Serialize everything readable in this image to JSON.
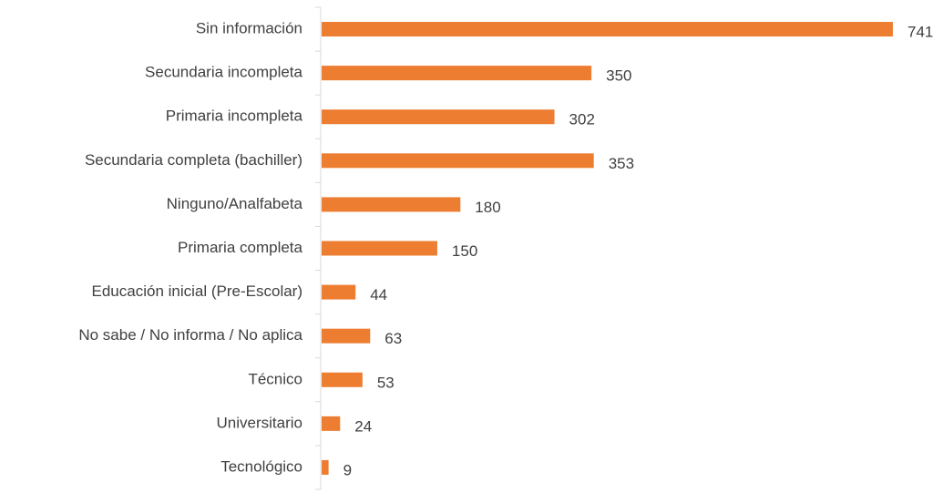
{
  "chart_data": {
    "type": "bar",
    "orientation": "horizontal",
    "categories": [
      "Sin información",
      "Secundaria incompleta",
      "Primaria incompleta",
      "Secundaria completa (bachiller)",
      "Ninguno/Analfabeta",
      "Primaria completa",
      "Educación inicial (Pre-Escolar)",
      "No sabe / No informa / No aplica",
      "Técnico",
      "Universitario",
      "Tecnológico"
    ],
    "values": [
      741,
      350,
      302,
      353,
      180,
      150,
      44,
      63,
      53,
      24,
      9
    ],
    "color": "#ED7D31",
    "data_labels": true
  }
}
